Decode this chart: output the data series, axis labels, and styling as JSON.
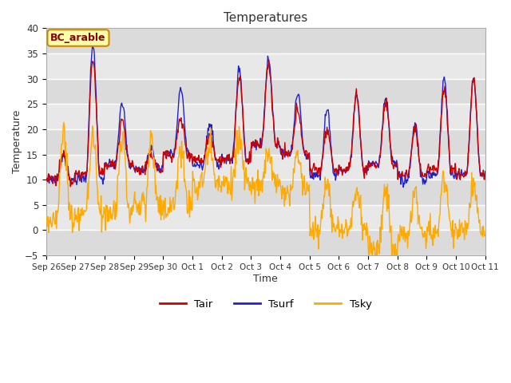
{
  "title": "Temperatures",
  "xlabel": "Time",
  "ylabel": "Temperature",
  "ylim": [
    -5,
    40
  ],
  "yticks": [
    -5,
    0,
    5,
    10,
    15,
    20,
    25,
    30,
    35,
    40
  ],
  "box_label": "BC_arable",
  "legend_entries": [
    "Tair",
    "Tsurf",
    "Tsky"
  ],
  "line_colors": [
    "#cc0000",
    "#2222cc",
    "#ffaa00"
  ],
  "background_color": "#ffffff",
  "plot_bg_color": "#e8e8e8",
  "x_tick_labels": [
    "Sep 26",
    "Sep 27",
    "Sep 28",
    "Sep 29",
    "Sep 30",
    "Oct 1",
    "Oct 2",
    "Oct 3",
    "Oct 4",
    "Oct 5",
    "Oct 6",
    "Oct 7",
    "Oct 8",
    "Oct 9",
    "Oct 10",
    "Oct 11"
  ],
  "n_points": 720,
  "n_days": 15
}
